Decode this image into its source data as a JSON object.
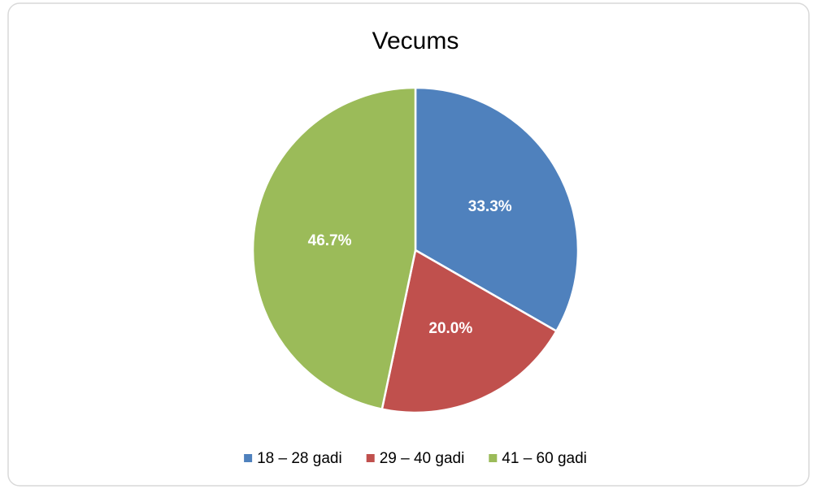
{
  "chart_data": {
    "type": "pie",
    "title": "Vecums",
    "categories": [
      "18 – 28 gadi",
      "29 – 40 gadi",
      "41 – 60 gadi"
    ],
    "values": [
      33.3,
      20.0,
      46.7
    ],
    "value_labels": [
      "33.3%",
      "20.0%",
      "46.7%"
    ],
    "colors": [
      "#4f81bd",
      "#c0504d",
      "#9bbb59"
    ],
    "legend": "bottom"
  }
}
